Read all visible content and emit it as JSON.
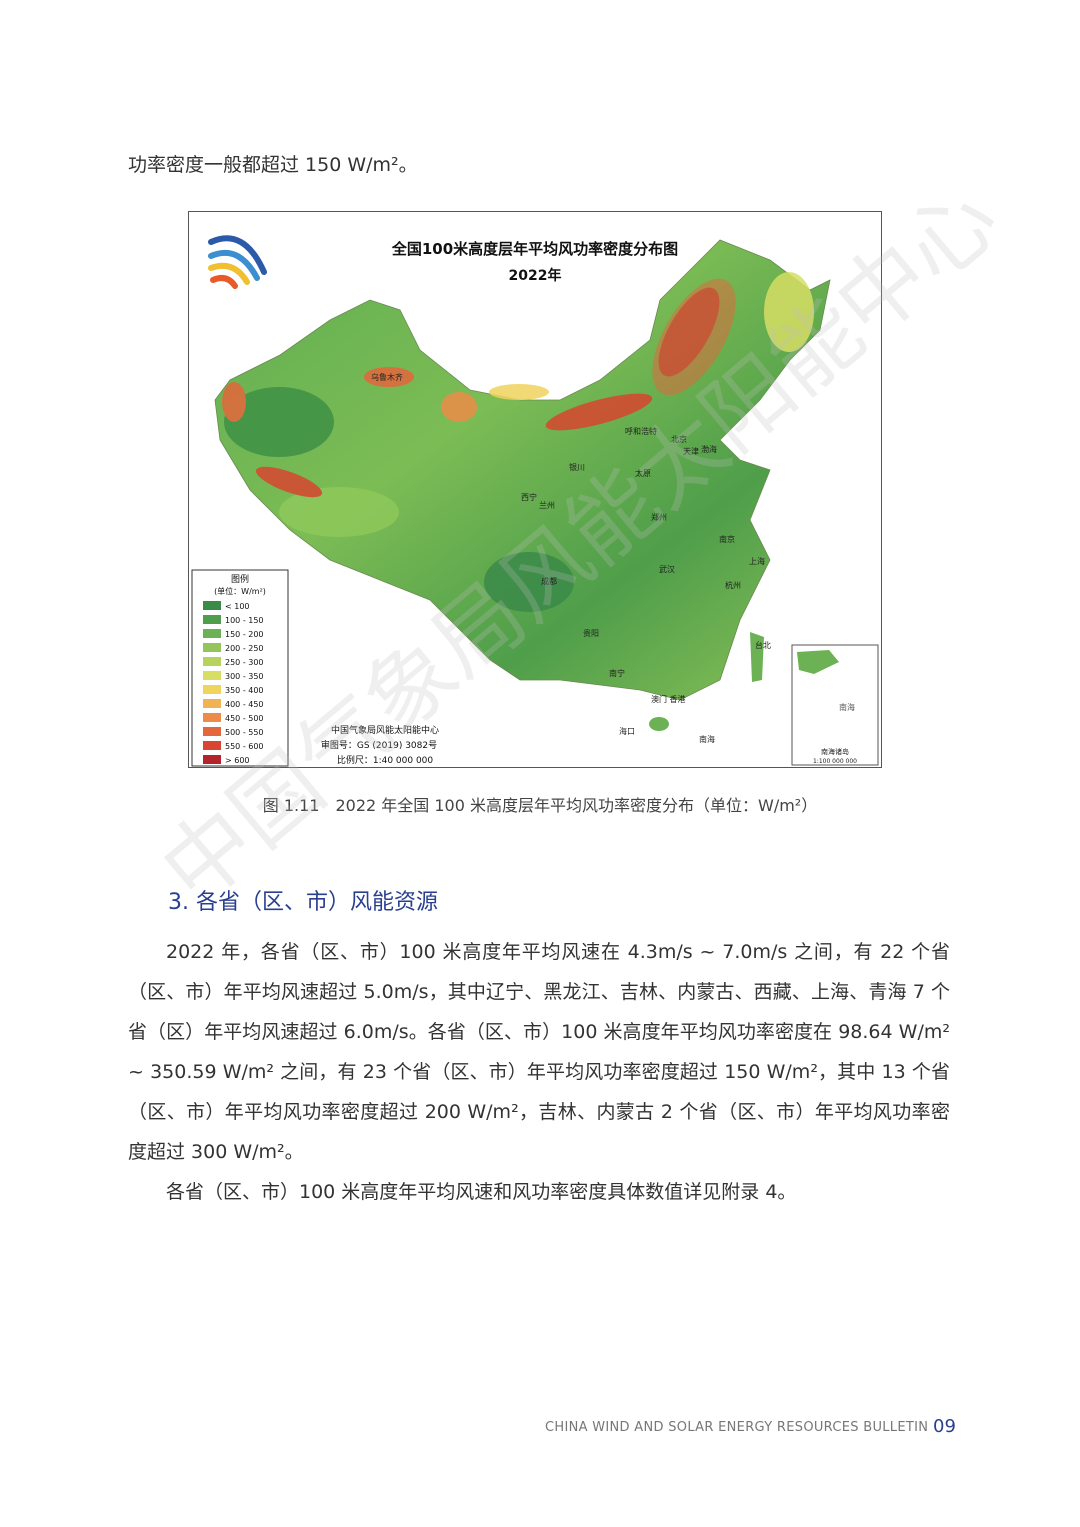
{
  "intro": "功率密度一般都超过 150 W/m²。",
  "figure": {
    "map_title": "全国100米高度层年平均风功率密度分布图",
    "map_year": "2022年",
    "legend": {
      "title": "图例",
      "unit": "(单位：W/m²)",
      "items": [
        {
          "label": "< 100",
          "color": "#3a8a48"
        },
        {
          "label": "100 - 150",
          "color": "#4f9e4c"
        },
        {
          "label": "150 - 200",
          "color": "#6cb254"
        },
        {
          "label": "200 - 250",
          "color": "#94c45a"
        },
        {
          "label": "250 - 300",
          "color": "#b6d35e"
        },
        {
          "label": "300 - 350",
          "color": "#d6de64"
        },
        {
          "label": "350 - 400",
          "color": "#efd45e"
        },
        {
          "label": "400 - 450",
          "color": "#f0b252"
        },
        {
          "label": "450 - 500",
          "color": "#ec8c48"
        },
        {
          "label": "500 - 550",
          "color": "#e4663c"
        },
        {
          "label": "550 - 600",
          "color": "#d84530"
        },
        {
          "label": "> 600",
          "color": "#b5242a"
        }
      ]
    },
    "credits": [
      "中国气象局风能太阳能中心",
      "审图号：GS (2019) 3082号",
      "比例尺：1:40 000 000"
    ],
    "inset": {
      "label": "南海诸岛",
      "scale": "1:100 000 000",
      "sea": "南海"
    },
    "place_labels": [
      "乌鲁木齐",
      "呼和浩特",
      "北京",
      "天津",
      "渤海",
      "西宁",
      "兰州",
      "银川",
      "太原",
      "郑州",
      "南京",
      "上海",
      "成都",
      "武汉",
      "杭州",
      "台北",
      "贵阳",
      "南宁",
      "澳门 香港",
      "海口",
      "南海"
    ],
    "caption": "图 1.11　2022 年全国 100 米高度层年平均风功率密度分布（单位：W/m²）"
  },
  "section": {
    "heading": "3. 各省（区、市）风能资源",
    "paragraphs": [
      "2022 年，各省（区、市）100 米高度年平均风速在 4.3m/s ~ 7.0m/s 之间，有 22 个省（区、市）年平均风速超过 5.0m/s，其中辽宁、黑龙江、吉林、内蒙古、西藏、上海、青海 7 个省（区）年平均风速超过 6.0m/s。各省（区、市）100 米高度年平均风功率密度在 98.64 W/m² ~ 350.59 W/m² 之间，有 23 个省（区、市）年平均风功率密度超过 150 W/m²，其中 13 个省（区、市）年平均风功率密度超过 200 W/m²，吉林、内蒙古 2 个省（区、市）年平均风功率密度超过 300 W/m²。",
      "各省（区、市）100 米高度年平均风速和风功率密度具体数值详见附录 4。"
    ]
  },
  "watermark": "中国气象局风能太阳能中心",
  "footer": {
    "title": "CHINA WIND AND SOLAR ENERGY RESOURCES BULLETIN",
    "page": "09"
  }
}
